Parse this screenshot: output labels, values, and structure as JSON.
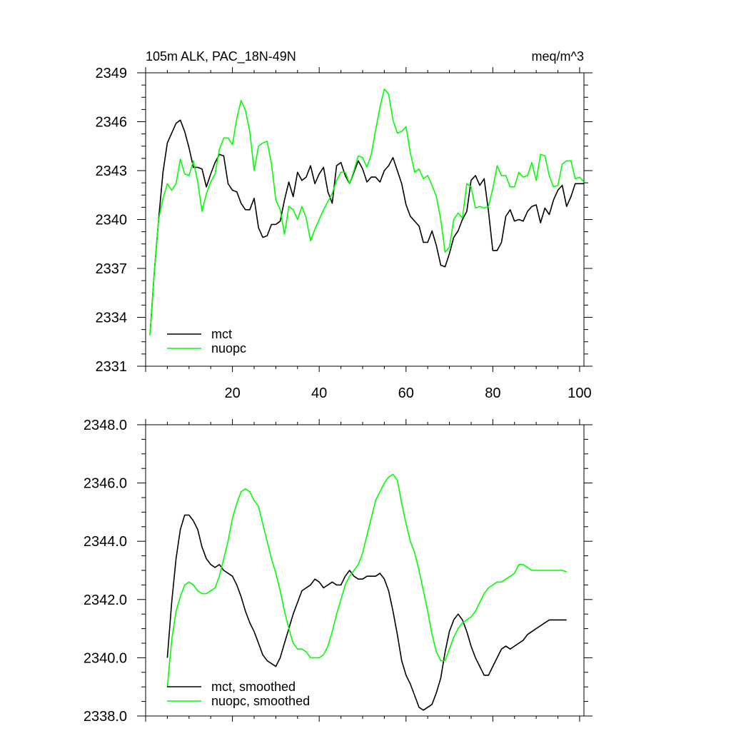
{
  "chart_data": [
    {
      "type": "line",
      "title": "105m ALK, PAC_18N-49N",
      "units": "meq/m^3",
      "xlim": [
        0,
        101
      ],
      "ylim": [
        2331,
        2349
      ],
      "xticks": [
        20,
        40,
        60,
        80,
        100
      ],
      "yticks": [
        2331,
        2334,
        2337,
        2340,
        2343,
        2346,
        2349
      ],
      "xtick_labels": [
        "20",
        "40",
        "60",
        "80",
        "100"
      ],
      "ytick_labels": [
        "2331",
        "2334",
        "2337",
        "2340",
        "2343",
        "2346",
        "2349"
      ],
      "legend_position": "bottom-left",
      "grid": false,
      "series": [
        {
          "name": "mct",
          "color": "#000000",
          "x": [
            1,
            2,
            3,
            4,
            5,
            6,
            7,
            8,
            9,
            10,
            11,
            12,
            13,
            14,
            15,
            16,
            17,
            18,
            19,
            20,
            21,
            22,
            23,
            24,
            25,
            26,
            27,
            28,
            29,
            30,
            31,
            32,
            33,
            34,
            35,
            36,
            37,
            38,
            39,
            40,
            41,
            42,
            43,
            44,
            45,
            46,
            47,
            48,
            49,
            50,
            51,
            52,
            53,
            54,
            55,
            56,
            57,
            58,
            59,
            60,
            61,
            62,
            63,
            64,
            65,
            66,
            67,
            68,
            69,
            70,
            71,
            72,
            73,
            74,
            75,
            76,
            77,
            78,
            79,
            80,
            81,
            82,
            83,
            84,
            85,
            86,
            87,
            88,
            89,
            90,
            91,
            92,
            93,
            94,
            95,
            96,
            97,
            98,
            99,
            100,
            101
          ],
          "y": [
            2332.9,
            2336.8,
            2340.0,
            2342.9,
            2344.7,
            2345.3,
            2345.9,
            2346.1,
            2345.4,
            2344.4,
            2343.2,
            2343.2,
            2343.1,
            2342.0,
            2342.8,
            2343.5,
            2344.0,
            2343.9,
            2342.2,
            2341.8,
            2341.7,
            2341.0,
            2340.6,
            2340.6,
            2341.3,
            2339.5,
            2338.9,
            2339.0,
            2339.7,
            2339.7,
            2339.9,
            2341.2,
            2342.3,
            2341.4,
            2342.9,
            2342.4,
            2342.6,
            2343.3,
            2342.2,
            2342.8,
            2343.2,
            2341.7,
            2341.0,
            2343.3,
            2343.5,
            2342.7,
            2342.2,
            2342.9,
            2343.6,
            2343.1,
            2342.3,
            2342.6,
            2342.6,
            2342.3,
            2343.0,
            2343.3,
            2343.8,
            2343.0,
            2342.2,
            2340.9,
            2340.2,
            2339.9,
            2339.6,
            2338.6,
            2338.6,
            2339.3,
            2338.4,
            2337.2,
            2337.1,
            2337.9,
            2338.9,
            2339.3,
            2340.0,
            2340.5,
            2342.4,
            2342.7,
            2342.1,
            2342.5,
            2340.5,
            2338.1,
            2338.1,
            2338.6,
            2340.2,
            2340.6,
            2339.9,
            2340.0,
            2339.9,
            2340.5,
            2340.8,
            2340.9,
            2339.8,
            2340.7,
            2340.3,
            2341.2,
            2341.8,
            2342.1,
            2340.8,
            2341.4,
            2342.2,
            2342.2,
            2342.2
          ]
        },
        {
          "name": "nuopc",
          "color": "#00ff00",
          "x": [
            1,
            2,
            3,
            4,
            5,
            6,
            7,
            8,
            9,
            10,
            11,
            12,
            13,
            14,
            15,
            16,
            17,
            18,
            19,
            20,
            21,
            22,
            23,
            24,
            25,
            26,
            27,
            28,
            29,
            30,
            31,
            32,
            33,
            34,
            35,
            36,
            37,
            38,
            39,
            40,
            41,
            42,
            43,
            44,
            45,
            46,
            47,
            48,
            49,
            50,
            51,
            52,
            53,
            54,
            55,
            56,
            57,
            58,
            59,
            60,
            61,
            62,
            63,
            64,
            65,
            66,
            67,
            68,
            69,
            70,
            71,
            72,
            73,
            74,
            75,
            76,
            77,
            78,
            79,
            80,
            81,
            82,
            83,
            84,
            85,
            86,
            87,
            88,
            89,
            90,
            91,
            92,
            93,
            94,
            95,
            96,
            97,
            98,
            99,
            100,
            101
          ],
          "y": [
            2332.9,
            2336.8,
            2340.0,
            2341.3,
            2342.2,
            2341.8,
            2342.2,
            2343.7,
            2342.8,
            2342.7,
            2343.6,
            2342.3,
            2340.5,
            2341.6,
            2342.3,
            2342.8,
            2344.3,
            2345.0,
            2345.0,
            2344.6,
            2346.2,
            2347.3,
            2346.7,
            2345.4,
            2343.0,
            2344.5,
            2344.7,
            2344.8,
            2343.4,
            2341.2,
            2340.6,
            2339.1,
            2340.8,
            2340.6,
            2340.0,
            2340.8,
            2340.1,
            2338.7,
            2339.4,
            2340.0,
            2340.6,
            2341.1,
            2341.6,
            2342.4,
            2342.9,
            2342.9,
            2342.2,
            2343.0,
            2343.9,
            2343.8,
            2343.2,
            2344.0,
            2345.5,
            2346.9,
            2348.0,
            2347.7,
            2346.1,
            2345.3,
            2345.4,
            2345.7,
            2344.1,
            2342.9,
            2343.1,
            2342.5,
            2342.7,
            2342.1,
            2341.4,
            2340.0,
            2338.0,
            2338.3,
            2340.0,
            2340.4,
            2340.1,
            2342.2,
            2342.0,
            2340.7,
            2340.8,
            2340.7,
            2340.8,
            2341.9,
            2343.3,
            2342.7,
            2342.7,
            2342.0,
            2342.0,
            2342.9,
            2342.6,
            2342.7,
            2343.5,
            2342.4,
            2344.0,
            2343.9,
            2342.7,
            2342.0,
            2342.1,
            2343.4,
            2343.6,
            2343.6,
            2342.5,
            2342.6,
            2342.3
          ]
        }
      ]
    },
    {
      "type": "line",
      "xlim": [
        0,
        101
      ],
      "ylim": [
        2338,
        2348
      ],
      "xticks": [
        20,
        40,
        60,
        80,
        100
      ],
      "yticks": [
        2338,
        2340,
        2342,
        2344,
        2346,
        2348
      ],
      "ytick_labels": [
        "2338.0",
        "2340.0",
        "2342.0",
        "2344.0",
        "2346.0",
        "2348.0"
      ],
      "legend_position": "bottom-left",
      "grid": false,
      "series": [
        {
          "name": "mct, smoothed",
          "color": "#000000",
          "x": [
            5,
            6,
            7,
            8,
            9,
            10,
            11,
            12,
            13,
            14,
            15,
            16,
            17,
            18,
            19,
            20,
            21,
            22,
            23,
            24,
            25,
            26,
            27,
            28,
            29,
            30,
            31,
            32,
            33,
            34,
            35,
            36,
            37,
            38,
            39,
            40,
            41,
            42,
            43,
            44,
            45,
            46,
            47,
            48,
            49,
            50,
            51,
            52,
            53,
            54,
            55,
            56,
            57,
            58,
            59,
            60,
            61,
            62,
            63,
            64,
            65,
            66,
            67,
            68,
            69,
            70,
            71,
            72,
            73,
            74,
            75,
            76,
            77,
            78,
            79,
            80,
            81,
            82,
            83,
            84,
            85,
            86,
            87,
            88,
            89,
            90,
            91,
            92,
            93,
            94,
            95,
            96,
            97
          ],
          "y": [
            2340.0,
            2341.9,
            2343.4,
            2344.4,
            2344.9,
            2344.9,
            2344.7,
            2344.4,
            2343.8,
            2343.4,
            2343.2,
            2343.1,
            2343.2,
            2343.0,
            2342.9,
            2342.8,
            2342.5,
            2342.1,
            2341.6,
            2341.2,
            2340.9,
            2340.5,
            2340.1,
            2339.9,
            2339.8,
            2339.7,
            2340.0,
            2340.5,
            2341.0,
            2341.5,
            2341.9,
            2342.3,
            2342.4,
            2342.5,
            2342.7,
            2342.6,
            2342.4,
            2342.5,
            2342.6,
            2342.5,
            2342.5,
            2342.8,
            2343.0,
            2342.8,
            2342.7,
            2342.7,
            2342.8,
            2342.8,
            2342.8,
            2342.9,
            2342.7,
            2342.3,
            2341.6,
            2340.8,
            2339.9,
            2339.4,
            2339.1,
            2338.7,
            2338.3,
            2338.2,
            2338.3,
            2338.4,
            2338.8,
            2339.3,
            2340.2,
            2340.9,
            2341.3,
            2341.5,
            2341.3,
            2340.9,
            2340.4,
            2340.0,
            2339.7,
            2339.4,
            2339.4,
            2339.7,
            2340.0,
            2340.3,
            2340.4,
            2340.3,
            2340.4,
            2340.5,
            2340.6,
            2340.8,
            2340.9,
            2341.0,
            2341.1,
            2341.2,
            2341.3,
            2341.3,
            2341.3,
            2341.3,
            2341.3
          ]
        },
        {
          "name": "nuopc, smoothed",
          "color": "#00ff00",
          "x": [
            5,
            6,
            7,
            8,
            9,
            10,
            11,
            12,
            13,
            14,
            15,
            16,
            17,
            18,
            19,
            20,
            21,
            22,
            23,
            24,
            25,
            26,
            27,
            28,
            29,
            30,
            31,
            32,
            33,
            34,
            35,
            36,
            37,
            38,
            39,
            40,
            41,
            42,
            43,
            44,
            45,
            46,
            47,
            48,
            49,
            50,
            51,
            52,
            53,
            54,
            55,
            56,
            57,
            58,
            59,
            60,
            61,
            62,
            63,
            64,
            65,
            66,
            67,
            68,
            69,
            70,
            71,
            72,
            73,
            74,
            75,
            76,
            77,
            78,
            79,
            80,
            81,
            82,
            83,
            84,
            85,
            86,
            87,
            88,
            89,
            90,
            91,
            92,
            93,
            94,
            95,
            96,
            97
          ],
          "y": [
            2339.0,
            2340.6,
            2341.6,
            2342.1,
            2342.5,
            2342.6,
            2342.5,
            2342.3,
            2342.2,
            2342.2,
            2342.3,
            2342.4,
            2342.8,
            2343.4,
            2344.0,
            2344.8,
            2345.3,
            2345.7,
            2345.8,
            2345.7,
            2345.4,
            2345.2,
            2344.6,
            2344.0,
            2343.4,
            2342.9,
            2342.3,
            2341.6,
            2341.0,
            2340.5,
            2340.3,
            2340.3,
            2340.2,
            2340.0,
            2340.0,
            2340.0,
            2340.1,
            2340.4,
            2340.9,
            2341.5,
            2342.0,
            2342.5,
            2342.8,
            2343.0,
            2343.2,
            2343.6,
            2344.2,
            2344.8,
            2345.4,
            2345.7,
            2346.0,
            2346.2,
            2346.3,
            2346.1,
            2345.3,
            2344.6,
            2344.0,
            2343.6,
            2343.0,
            2342.3,
            2341.6,
            2340.8,
            2340.2,
            2339.9,
            2339.9,
            2340.3,
            2340.7,
            2341.0,
            2341.2,
            2341.3,
            2341.4,
            2341.6,
            2341.9,
            2342.2,
            2342.4,
            2342.5,
            2342.6,
            2342.6,
            2342.7,
            2342.8,
            2342.9,
            2343.2,
            2343.2,
            2343.1,
            2343.0,
            2343.0,
            2343.0,
            2343.0,
            2343.0,
            2343.0,
            2343.0,
            2343.0,
            2342.95
          ]
        }
      ]
    }
  ]
}
